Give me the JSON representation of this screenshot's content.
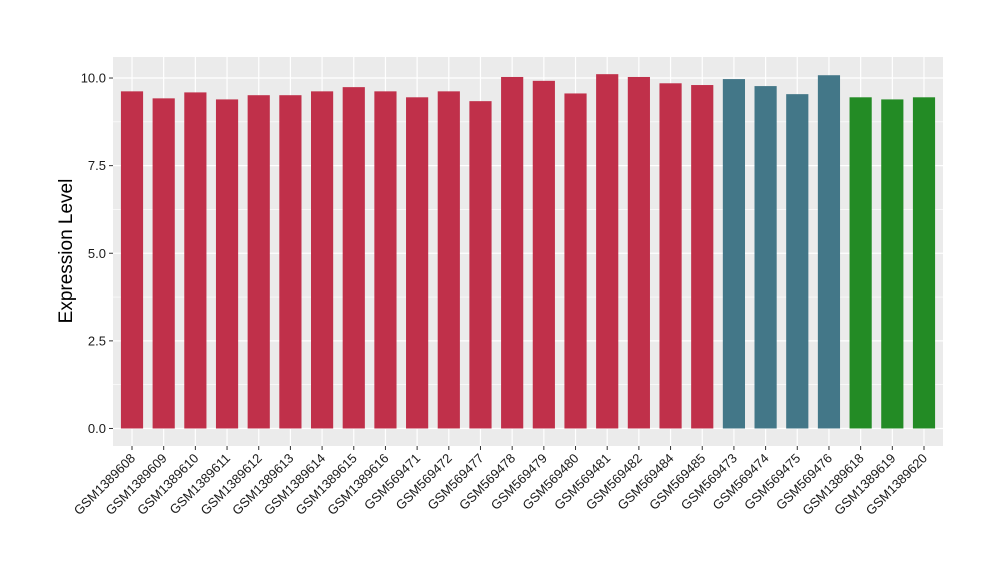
{
  "chart_data": {
    "type": "bar",
    "title": "",
    "xlabel": "",
    "ylabel": "Expression Level",
    "ylim": [
      -0.5,
      10.6
    ],
    "yticks": [
      0.0,
      2.5,
      5.0,
      7.5,
      10.0
    ],
    "ytick_labels": [
      "0.0",
      "2.5",
      "5.0",
      "7.5",
      "10.0"
    ],
    "grid": true,
    "legend": "none",
    "panel_background": "#ebebeb",
    "grid_color": "#ffffff",
    "categories": [
      "GSM1389608",
      "GSM1389609",
      "GSM1389610",
      "GSM1389611",
      "GSM1389612",
      "GSM1389613",
      "GSM1389614",
      "GSM1389615",
      "GSM1389616",
      "GSM569471",
      "GSM569472",
      "GSM569477",
      "GSM569478",
      "GSM569479",
      "GSM569480",
      "GSM569481",
      "GSM569482",
      "GSM569484",
      "GSM569485",
      "GSM569473",
      "GSM569474",
      "GSM569475",
      "GSM569476",
      "GSM1389618",
      "GSM1389619",
      "GSM1389620"
    ],
    "values": [
      9.62,
      9.42,
      9.59,
      9.39,
      9.51,
      9.51,
      9.62,
      9.74,
      9.62,
      9.45,
      9.62,
      9.34,
      10.03,
      9.92,
      9.56,
      10.11,
      10.03,
      9.85,
      9.8,
      9.97,
      9.77,
      9.54,
      10.08,
      9.45,
      9.39,
      9.45
    ],
    "colors": [
      "#c0304a",
      "#c0304a",
      "#c0304a",
      "#c0304a",
      "#c0304a",
      "#c0304a",
      "#c0304a",
      "#c0304a",
      "#c0304a",
      "#c0304a",
      "#c0304a",
      "#c0304a",
      "#c0304a",
      "#c0304a",
      "#c0304a",
      "#c0304a",
      "#c0304a",
      "#c0304a",
      "#c0304a",
      "#437788",
      "#437788",
      "#437788",
      "#437788",
      "#238b25",
      "#238b25",
      "#238b25"
    ]
  }
}
